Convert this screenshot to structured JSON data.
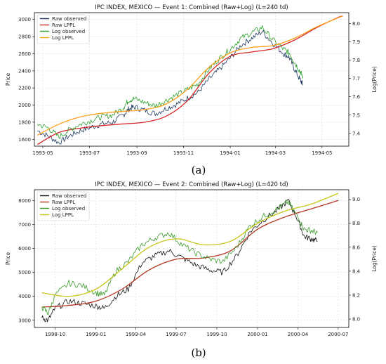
{
  "chart_data": [
    {
      "type": "line",
      "title": "IPC INDEX, MEXICO — Event 1: Combined (Raw+Log) (L=240 td)",
      "xlabel": "",
      "ylabel": "Price",
      "ylabel_right": "Log(Price)",
      "xlim": [
        "1993-04-20",
        "1994-06-05"
      ],
      "ylim": [
        1520,
        3080
      ],
      "ylim_right": [
        7.33,
        8.06
      ],
      "x_ticks": [
        "1993-05",
        "1993-07",
        "1993-09",
        "1993-11",
        "1994-01",
        "1994-03",
        "1994-05"
      ],
      "y_ticks": [
        1600,
        1800,
        2000,
        2200,
        2400,
        2600,
        2800,
        3000
      ],
      "y_ticks_right": [
        7.4,
        7.5,
        7.6,
        7.7,
        7.8,
        7.9,
        8.0
      ],
      "grid": true,
      "legend_position": "top-left",
      "legend": [
        "Raw observed",
        "Raw LPPL",
        "Log observed",
        "Log LPPL"
      ],
      "caption": "(a)",
      "series": [
        {
          "name": "Raw observed",
          "axis": "left",
          "color": "#1f3a5f",
          "style": "noisy",
          "x": [
            "1993-04-24",
            "1993-05-08",
            "1993-05-22",
            "1993-06-05",
            "1993-06-19",
            "1993-07-03",
            "1993-07-17",
            "1993-07-31",
            "1993-08-14",
            "1993-08-21",
            "1993-08-28",
            "1993-09-11",
            "1993-09-25",
            "1993-10-09",
            "1993-10-23",
            "1993-11-06",
            "1993-11-20",
            "1993-12-04",
            "1993-12-18",
            "1994-01-01",
            "1994-01-15",
            "1994-01-29",
            "1994-02-12",
            "1994-02-26",
            "1994-03-12",
            "1994-03-19",
            "1994-03-26",
            "1994-04-02",
            "1994-04-06"
          ],
          "y": [
            1700,
            1640,
            1560,
            1640,
            1700,
            1740,
            1780,
            1800,
            1880,
            1950,
            1980,
            1940,
            1900,
            1960,
            2010,
            2080,
            2150,
            2300,
            2420,
            2550,
            2700,
            2780,
            2860,
            2720,
            2600,
            2560,
            2420,
            2300,
            2240
          ]
        },
        {
          "name": "Raw LPPL",
          "axis": "left",
          "color": "#d62728",
          "style": "smooth",
          "x": [
            "1993-04-24",
            "1993-05-22",
            "1993-06-19",
            "1993-07-17",
            "1993-08-14",
            "1993-09-11",
            "1993-10-09",
            "1993-11-06",
            "1993-12-04",
            "1994-01-01",
            "1994-01-29",
            "1994-02-26",
            "1994-03-26",
            "1994-04-23",
            "1994-05-21",
            "1994-05-28"
          ],
          "y": [
            1540,
            1680,
            1730,
            1760,
            1780,
            1800,
            1870,
            2050,
            2370,
            2570,
            2620,
            2660,
            2760,
            2900,
            3020,
            3040
          ]
        },
        {
          "name": "Log observed",
          "axis": "right",
          "color": "#2ca02c",
          "style": "noisy",
          "x": [
            "1993-04-24",
            "1993-05-08",
            "1993-05-22",
            "1993-06-05",
            "1993-06-19",
            "1993-07-03",
            "1993-07-17",
            "1993-07-31",
            "1993-08-14",
            "1993-08-21",
            "1993-08-28",
            "1993-09-11",
            "1993-09-25",
            "1993-10-09",
            "1993-10-23",
            "1993-11-06",
            "1993-11-20",
            "1993-12-04",
            "1993-12-18",
            "1994-01-01",
            "1994-01-15",
            "1994-01-29",
            "1994-02-12",
            "1994-02-26",
            "1994-03-12",
            "1994-03-19",
            "1994-03-26",
            "1994-04-02",
            "1994-04-06"
          ],
          "y": [
            7.45,
            7.43,
            7.38,
            7.42,
            7.45,
            7.47,
            7.49,
            7.5,
            7.54,
            7.58,
            7.59,
            7.57,
            7.55,
            7.58,
            7.61,
            7.64,
            7.67,
            7.75,
            7.81,
            7.86,
            7.92,
            7.95,
            7.98,
            7.91,
            7.86,
            7.84,
            7.79,
            7.74,
            7.71
          ]
        },
        {
          "name": "Log LPPL",
          "axis": "right",
          "color": "#ff9f1c",
          "style": "smooth",
          "x": [
            "1993-04-24",
            "1993-05-22",
            "1993-06-19",
            "1993-07-17",
            "1993-08-14",
            "1993-09-11",
            "1993-10-09",
            "1993-11-06",
            "1993-12-04",
            "1994-01-01",
            "1994-01-29",
            "1994-02-26",
            "1994-03-26",
            "1994-04-23",
            "1994-05-21",
            "1994-05-28"
          ],
          "y": [
            7.39,
            7.45,
            7.49,
            7.51,
            7.52,
            7.53,
            7.56,
            7.64,
            7.76,
            7.84,
            7.87,
            7.88,
            7.92,
            7.98,
            8.03,
            8.04
          ]
        }
      ]
    },
    {
      "type": "line",
      "title": "IPC INDEX, MEXICO — Event 2: Combined (Raw+Log) (L=420 td)",
      "xlabel": "",
      "ylabel": "Price",
      "ylabel_right": "Log(Price)",
      "xlim": [
        "1998-08-15",
        "2000-07-25"
      ],
      "ylim": [
        2700,
        8450
      ],
      "ylim_right": [
        7.93,
        9.08
      ],
      "x_ticks": [
        "1998-10",
        "1999-01",
        "1999-04",
        "1999-07",
        "1999-10",
        "2000-01",
        "2000-04",
        "2000-07"
      ],
      "y_ticks": [
        3000,
        4000,
        5000,
        6000,
        7000,
        8000
      ],
      "y_ticks_right": [
        8.0,
        8.2,
        8.4,
        8.6,
        8.8,
        9.0
      ],
      "grid": true,
      "legend_position": "top-left",
      "legend": [
        "Raw observed",
        "Raw LPPL",
        "Log observed",
        "Log LPPL"
      ],
      "caption": "(b)",
      "series": [
        {
          "name": "Raw observed",
          "axis": "left",
          "color": "#111111",
          "style": "noisy",
          "x": [
            "1998-09-01",
            "1998-09-15",
            "1998-10-01",
            "1998-11-01",
            "1998-12-01",
            "1999-01-01",
            "1999-01-20",
            "1999-02-15",
            "1999-03-15",
            "1999-04-15",
            "1999-05-15",
            "1999-06-15",
            "1999-07-15",
            "1999-08-15",
            "1999-09-15",
            "1999-10-15",
            "1999-11-15",
            "1999-12-15",
            "2000-01-15",
            "2000-02-15",
            "2000-03-10",
            "2000-04-01",
            "2000-04-15",
            "2000-05-01",
            "2000-05-15"
          ],
          "y": [
            3100,
            3000,
            3500,
            3800,
            3700,
            3600,
            3500,
            4000,
            4300,
            5400,
            5700,
            5900,
            5600,
            5300,
            5100,
            5000,
            5700,
            6700,
            7200,
            7600,
            8000,
            7200,
            6500,
            6400,
            6300
          ]
        },
        {
          "name": "Raw LPPL",
          "axis": "left",
          "color": "#b5341f",
          "style": "smooth",
          "x": [
            "1998-09-01",
            "1998-11-01",
            "1999-01-01",
            "1999-03-01",
            "1999-05-01",
            "1999-07-01",
            "1999-09-01",
            "1999-11-01",
            "2000-01-01",
            "2000-03-01",
            "2000-05-01",
            "2000-07-01"
          ],
          "y": [
            3550,
            3620,
            3800,
            4300,
            5100,
            5550,
            5600,
            5900,
            6800,
            7300,
            7650,
            8000
          ]
        },
        {
          "name": "Log observed",
          "axis": "right",
          "color": "#3a9a2a",
          "style": "noisy",
          "x": [
            "1998-09-01",
            "1998-09-15",
            "1998-10-01",
            "1998-11-01",
            "1998-12-01",
            "1999-01-01",
            "1999-01-20",
            "1999-02-15",
            "1999-03-15",
            "1999-04-15",
            "1999-05-15",
            "1999-06-15",
            "1999-07-15",
            "1999-08-15",
            "1999-09-15",
            "1999-10-15",
            "1999-11-15",
            "1999-12-15",
            "2000-01-15",
            "2000-02-15",
            "2000-03-10",
            "2000-04-01",
            "2000-04-15",
            "2000-05-01",
            "2000-05-15"
          ],
          "y": [
            8.1,
            8.05,
            8.2,
            8.3,
            8.28,
            8.22,
            8.2,
            8.4,
            8.48,
            8.62,
            8.68,
            8.72,
            8.62,
            8.55,
            8.5,
            8.48,
            8.6,
            8.78,
            8.86,
            8.92,
            8.98,
            8.85,
            8.75,
            8.74,
            8.72
          ]
        },
        {
          "name": "Log LPPL",
          "axis": "right",
          "color": "#c8c41a",
          "style": "smooth",
          "x": [
            "1998-09-01",
            "1998-11-01",
            "1999-01-01",
            "1999-03-01",
            "1999-05-01",
            "1999-07-01",
            "1999-09-01",
            "1999-11-01",
            "2000-01-01",
            "2000-03-01",
            "2000-05-01",
            "2000-07-01"
          ],
          "y": [
            8.22,
            8.19,
            8.25,
            8.42,
            8.6,
            8.67,
            8.62,
            8.65,
            8.8,
            8.9,
            8.96,
            9.05
          ]
        }
      ]
    }
  ]
}
